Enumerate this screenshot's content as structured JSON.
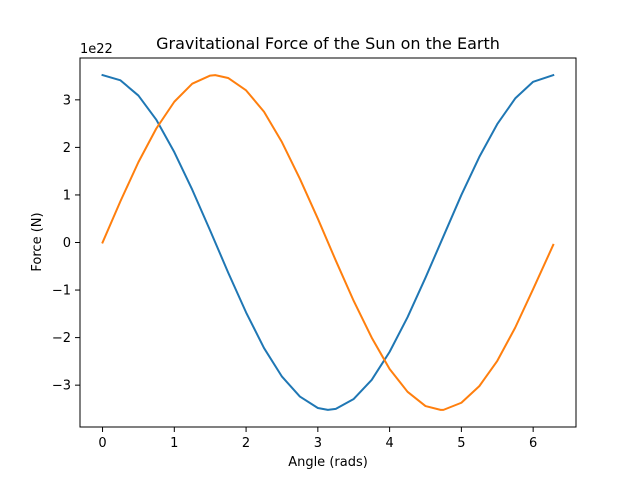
{
  "chart_data": {
    "type": "line",
    "title": "Gravitational Force of the Sun on the Earth",
    "xlabel": "Angle (rads)",
    "ylabel": "Force (N)",
    "y_offset_label": "1e22",
    "xlim": [
      -0.314,
      6.597
    ],
    "ylim": [
      -3.88,
      3.88
    ],
    "x_ticks": [
      0,
      1,
      2,
      3,
      4,
      5,
      6
    ],
    "y_ticks": [
      -3,
      -2,
      -1,
      0,
      1,
      2,
      3
    ],
    "x_tick_labels": [
      "0",
      "1",
      "2",
      "3",
      "4",
      "5",
      "6"
    ],
    "y_tick_labels": [
      "−3",
      "−2",
      "−1",
      "0",
      "1",
      "2",
      "3"
    ],
    "grid": false,
    "legend": null,
    "series": [
      {
        "color": "#1f77b4",
        "x": [
          0,
          0.25,
          0.5,
          0.75,
          1.0,
          1.25,
          1.5,
          1.75,
          2.0,
          2.25,
          2.5,
          2.75,
          3.0,
          3.14,
          3.25,
          3.5,
          3.75,
          4.0,
          4.25,
          4.5,
          4.75,
          5.0,
          5.25,
          5.5,
          5.75,
          6.0,
          6.28
        ],
        "y": [
          3.52,
          3.41,
          3.09,
          2.58,
          1.9,
          1.11,
          0.25,
          -0.63,
          -1.47,
          -2.22,
          -2.82,
          -3.24,
          -3.48,
          -3.52,
          -3.5,
          -3.29,
          -2.89,
          -2.3,
          -1.57,
          -0.74,
          0.13,
          1.0,
          1.8,
          2.49,
          3.03,
          3.38,
          3.52
        ]
      },
      {
        "color": "#ff7f0e",
        "x": [
          0,
          0.25,
          0.5,
          0.75,
          1.0,
          1.25,
          1.5,
          1.57,
          1.75,
          2.0,
          2.25,
          2.5,
          2.75,
          3.0,
          3.25,
          3.5,
          3.75,
          4.0,
          4.25,
          4.5,
          4.71,
          4.75,
          5.0,
          5.25,
          5.5,
          5.75,
          6.0,
          6.28
        ],
        "y": [
          0.0,
          0.87,
          1.69,
          2.4,
          2.96,
          3.34,
          3.51,
          3.52,
          3.46,
          3.2,
          2.75,
          2.11,
          1.34,
          0.5,
          -0.38,
          -1.23,
          -2.0,
          -2.66,
          -3.14,
          -3.44,
          -3.52,
          -3.52,
          -3.37,
          -3.02,
          -2.49,
          -1.79,
          -0.98,
          -0.05
        ]
      }
    ]
  }
}
